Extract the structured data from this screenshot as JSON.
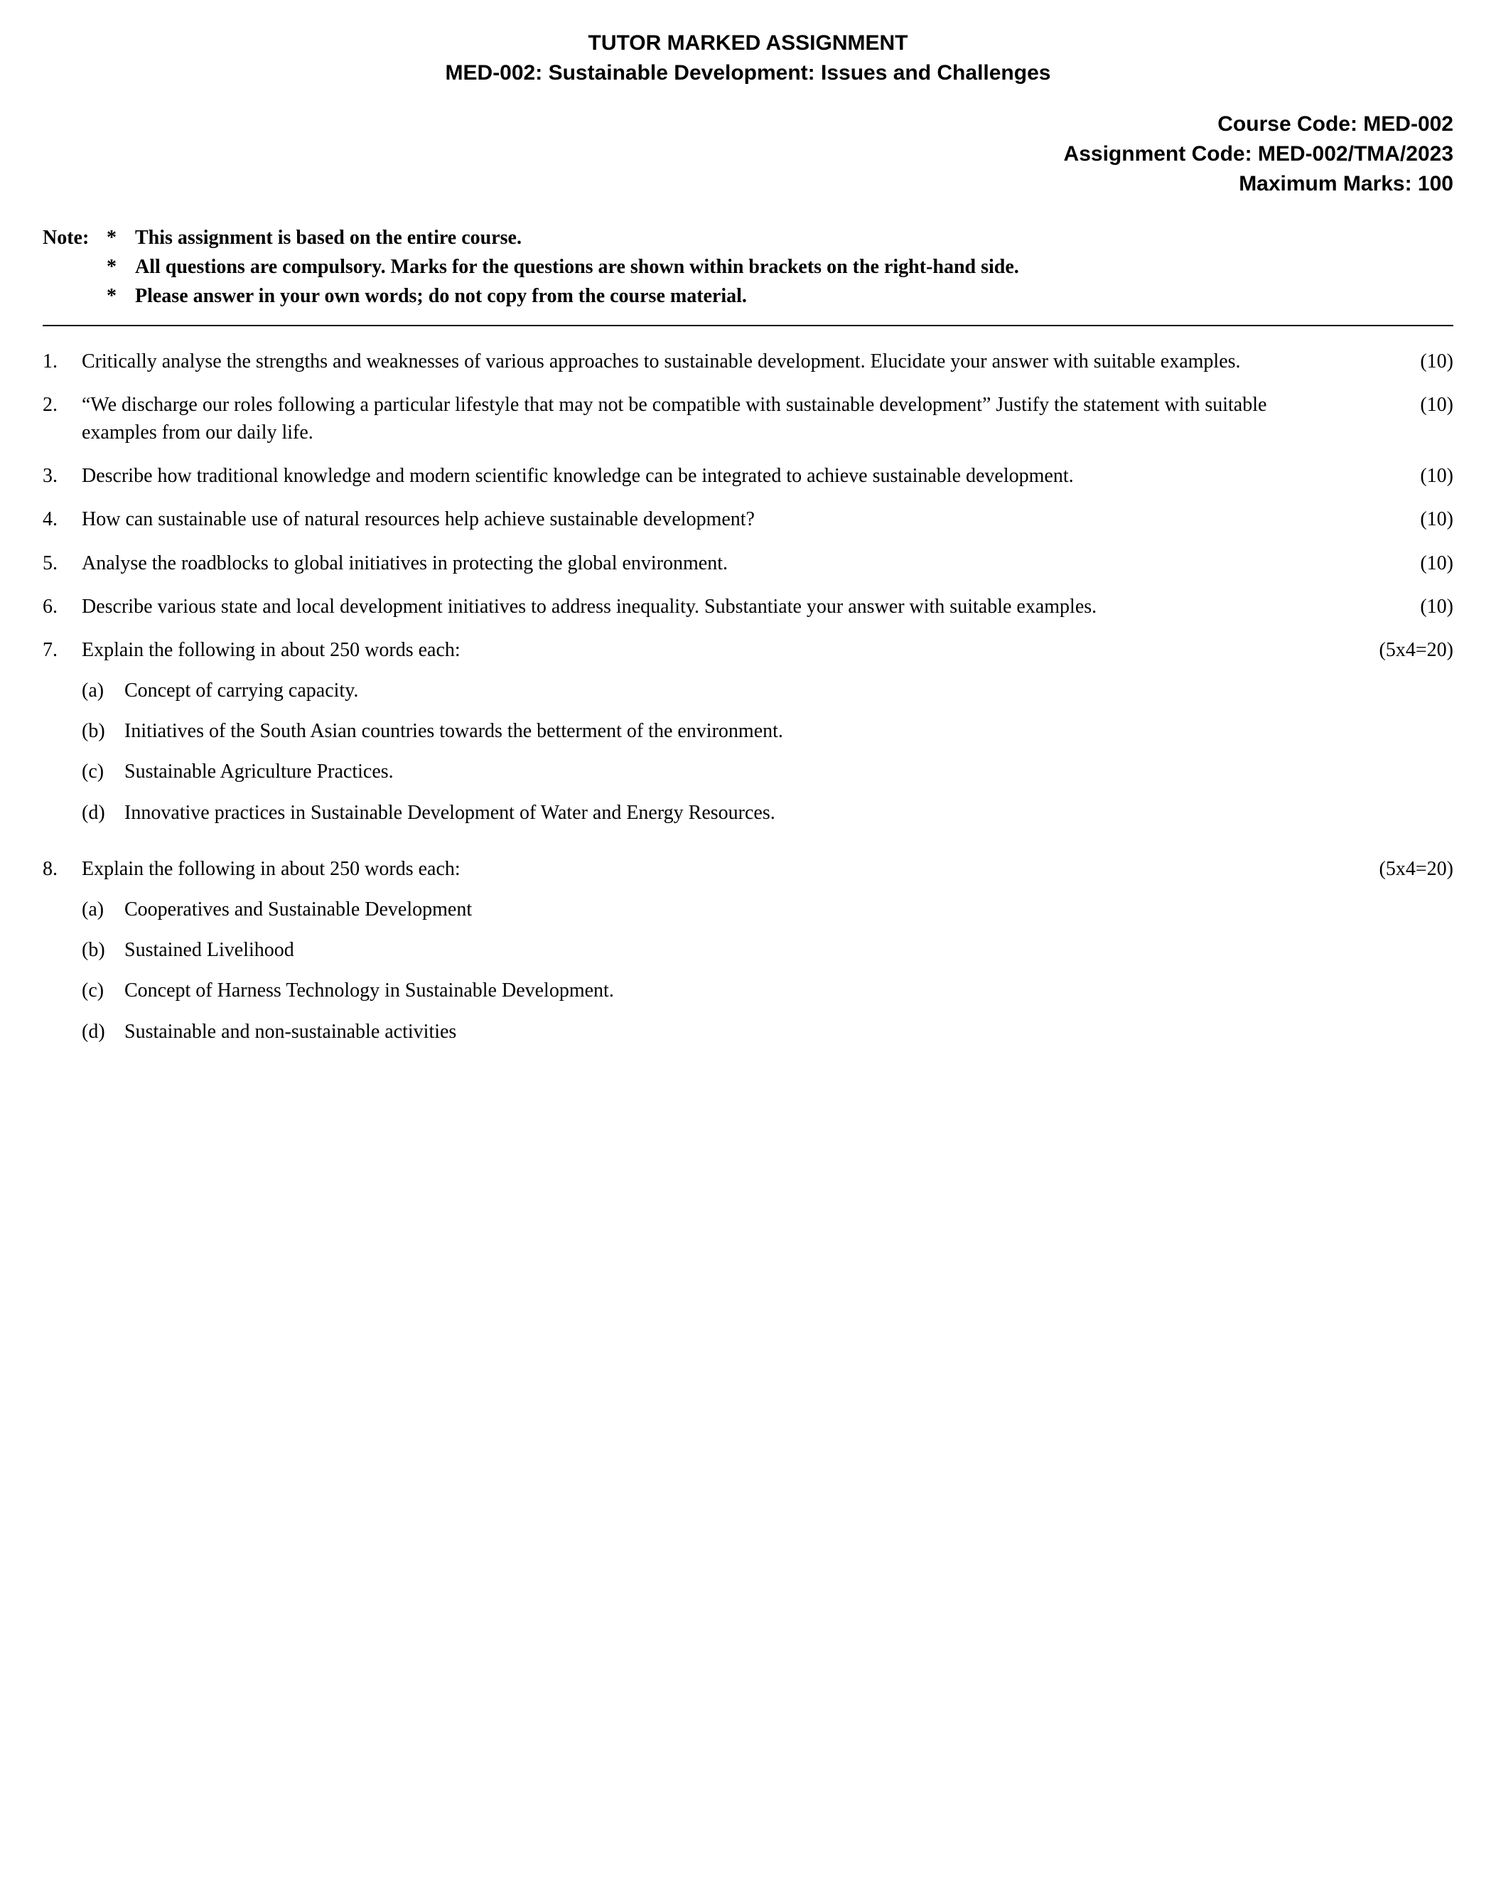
{
  "header": {
    "line1": "TUTOR MARKED ASSIGNMENT",
    "line2": "MED-002: Sustainable Development: Issues and Challenges"
  },
  "meta": {
    "course_code": "Course Code: MED-002",
    "assignment_code": "Assignment Code: MED-002/TMA/2023",
    "max_marks": "Maximum Marks: 100"
  },
  "note": {
    "label": "Note:",
    "bullet": "*",
    "items": [
      "This assignment is based on the entire course.",
      "All questions are compulsory. Marks for the questions are shown within brackets on the right-hand side.",
      "Please answer in your own words; do not copy from the course material."
    ]
  },
  "questions": [
    {
      "num": "1.",
      "text": "Critically analyse the strengths and weaknesses of various approaches to sustainable development. Elucidate your answer with suitable examples.",
      "marks": "(10)"
    },
    {
      "num": "2.",
      "text": "“We discharge our roles following a particular lifestyle that may not be compatible with sustainable development” Justify the statement with suitable examples from our daily life.",
      "marks": "(10)"
    },
    {
      "num": "3.",
      "text": "Describe how traditional knowledge and modern scientific knowledge can be integrated to achieve sustainable development.",
      "marks": "(10)"
    },
    {
      "num": "4.",
      "text": "How can sustainable use of natural resources help achieve sustainable development?",
      "marks": "(10)"
    },
    {
      "num": "5.",
      "text": "Analyse the roadblocks to global initiatives in protecting the global environment.",
      "marks": "(10)"
    },
    {
      "num": "6.",
      "text": "Describe various state and local development initiatives to address inequality. Substantiate your answer with suitable examples.",
      "marks": "(10)"
    },
    {
      "num": "7.",
      "text": "Explain the following in about 250 words each:",
      "marks": "(5x4=20)",
      "subparts": [
        {
          "label": "(a)",
          "text": "Concept of carrying capacity."
        },
        {
          "label": "(b)",
          "text": "Initiatives of the South Asian countries towards the betterment of the environment."
        },
        {
          "label": "(c)",
          "text": "Sustainable Agriculture Practices."
        },
        {
          "label": "(d)",
          "text": "Innovative practices in Sustainable Development of Water and Energy Resources."
        }
      ]
    },
    {
      "num": "8.",
      "text": "Explain the following in about 250 words each:",
      "marks": "(5x4=20)",
      "subparts": [
        {
          "label": "(a)",
          "text": "Cooperatives and Sustainable Development"
        },
        {
          "label": "(b)",
          "text": "Sustained Livelihood"
        },
        {
          "label": "(c)",
          "text": "Concept of Harness Technology in Sustainable Development."
        },
        {
          "label": "(d)",
          "text": "Sustainable and non-sustainable activities"
        }
      ]
    }
  ]
}
